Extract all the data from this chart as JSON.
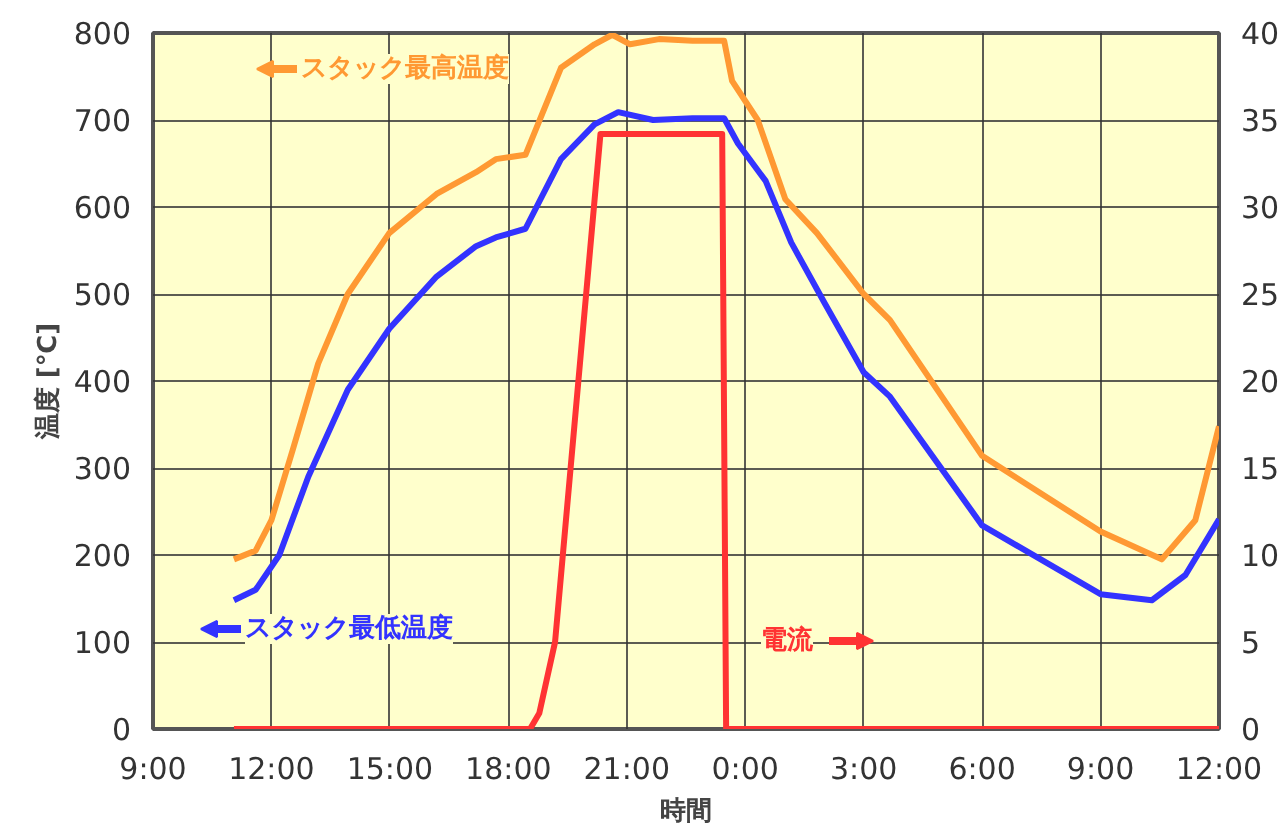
{
  "chart_data": {
    "type": "line",
    "xlabel": "時間",
    "ylabel": "温度 [℃]",
    "xlim": [
      "2000-01-01T09:00",
      "2000-01-02T12:00"
    ],
    "ylim": [
      0,
      800
    ],
    "y2lim": [
      0,
      40
    ],
    "xticks": [
      {
        "value": "2000-01-01T09:00",
        "label": "9:00"
      },
      {
        "value": "2000-01-01T12:00",
        "label": "12:00"
      },
      {
        "value": "2000-01-01T15:00",
        "label": "15:00"
      },
      {
        "value": "2000-01-01T18:00",
        "label": "18:00"
      },
      {
        "value": "2000-01-01T21:00",
        "label": "21:00"
      },
      {
        "value": "2000-01-02T00:00",
        "label": "0:00"
      },
      {
        "value": "2000-01-02T03:00",
        "label": "3:00"
      },
      {
        "value": "2000-01-02T06:00",
        "label": "6:00"
      },
      {
        "value": "2000-01-02T09:00",
        "label": "9:00"
      },
      {
        "value": "2000-01-02T12:00",
        "label": "12:00"
      }
    ],
    "yticks": [
      0,
      100,
      200,
      300,
      400,
      500,
      600,
      700,
      800
    ],
    "y2ticks": [
      0,
      5,
      10,
      15,
      20,
      25,
      30,
      35,
      40
    ],
    "grid": true,
    "legend": "left",
    "series": [
      {
        "name": "スタック最高温度",
        "color": "#ff9933",
        "x": [
          "2000-01-01T11:03",
          "2000-01-01T11:36",
          "2000-01-01T12:00",
          "2000-01-01T12:32",
          "2000-01-01T13:11",
          "2000-01-01T13:56",
          "2000-01-01T14:59",
          "2000-01-01T16:11",
          "2000-01-01T17:11",
          "2000-01-01T17:41",
          "2000-01-01T18:26",
          "2000-01-01T19:20",
          "2000-01-01T20:11",
          "2000-01-01T20:38",
          "2000-01-01T21:05",
          "2000-01-01T21:49",
          "2000-01-01T22:40",
          "2000-01-01T23:28",
          "2000-01-01T23:40",
          "2000-01-02T00:19",
          "2000-01-02T01:01",
          "2000-01-02T01:49",
          "2000-01-02T03:00",
          "2000-01-02T03:40",
          "2000-01-02T06:00",
          "2000-01-02T09:00",
          "2000-01-02T10:33",
          "2000-01-02T11:24",
          "2000-01-02T12:00"
        ],
        "values": [
          195,
          205,
          240,
          320,
          420,
          500,
          570,
          615,
          640,
          655,
          660,
          760,
          787,
          798,
          787,
          793,
          791,
          791,
          745,
          700,
          609,
          570,
          500,
          470,
          314,
          227,
          195,
          240,
          348
        ]
      },
      {
        "name": "スタック最低温度",
        "color": "#3333ff",
        "x": [
          "2000-01-01T11:03",
          "2000-01-01T11:36",
          "2000-01-01T12:12",
          "2000-01-01T12:56",
          "2000-01-01T13:56",
          "2000-01-01T14:59",
          "2000-01-01T16:11",
          "2000-01-01T17:11",
          "2000-01-01T17:41",
          "2000-01-01T18:26",
          "2000-01-01T19:20",
          "2000-01-01T20:11",
          "2000-01-01T20:47",
          "2000-01-01T21:40",
          "2000-01-01T22:40",
          "2000-01-01T23:28",
          "2000-01-01T23:49",
          "2000-01-02T00:31",
          "2000-01-02T01:10",
          "2000-01-02T02:01",
          "2000-01-02T03:00",
          "2000-01-02T03:40",
          "2000-01-02T06:00",
          "2000-01-02T09:00",
          "2000-01-02T10:18",
          "2000-01-02T11:09",
          "2000-01-02T12:00"
        ],
        "values": [
          148,
          160,
          200,
          290,
          390,
          460,
          520,
          555,
          565,
          575,
          655,
          695,
          709,
          700,
          702,
          702,
          673,
          630,
          559,
          489,
          410,
          382,
          234,
          155,
          148,
          177,
          241
        ]
      },
      {
        "name": "電流",
        "color": "#ff3333",
        "axis": "y2",
        "x": [
          "2000-01-01T11:03",
          "2000-01-01T18:33",
          "2000-01-01T18:47",
          "2000-01-01T19:11",
          "2000-01-01T20:20",
          "2000-01-01T23:25",
          "2000-01-01T23:31",
          "2000-01-02T12:00"
        ],
        "values": [
          0,
          0,
          0.9,
          5,
          34.2,
          34.2,
          0,
          0
        ]
      }
    ]
  }
}
